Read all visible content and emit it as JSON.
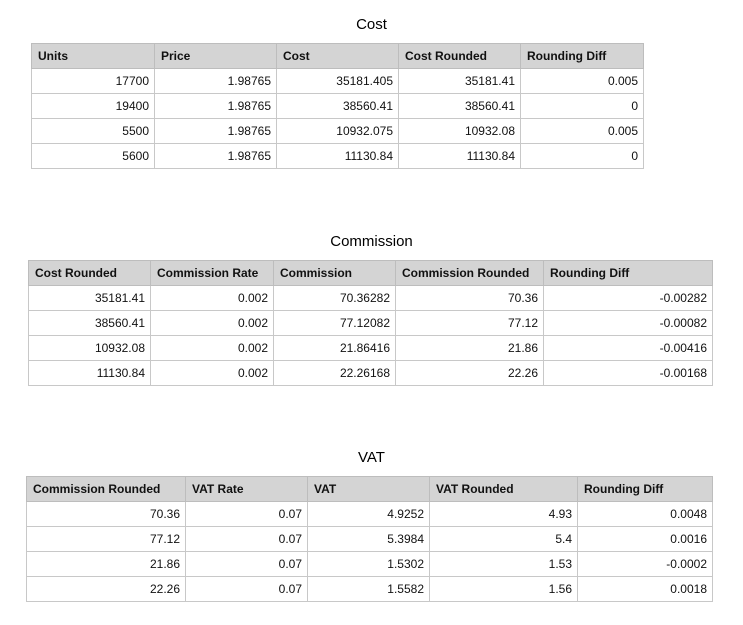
{
  "tables": [
    {
      "title": "Cost",
      "headers": [
        "Units",
        "Price",
        "Cost",
        "Cost Rounded",
        "Rounding Diff"
      ],
      "rows": [
        [
          "17700",
          "1.98765",
          "35181.405",
          "35181.41",
          "0.005"
        ],
        [
          "19400",
          "1.98765",
          "38560.41",
          "38560.41",
          "0"
        ],
        [
          "5500",
          "1.98765",
          "10932.075",
          "10932.08",
          "0.005"
        ],
        [
          "5600",
          "1.98765",
          "11130.84",
          "11130.84",
          "0"
        ]
      ]
    },
    {
      "title": "Commission",
      "headers": [
        "Cost Rounded",
        "Commission Rate",
        "Commission",
        "Commission Rounded",
        "Rounding Diff"
      ],
      "rows": [
        [
          "35181.41",
          "0.002",
          "70.36282",
          "70.36",
          "-0.00282"
        ],
        [
          "38560.41",
          "0.002",
          "77.12082",
          "77.12",
          "-0.00082"
        ],
        [
          "10932.08",
          "0.002",
          "21.86416",
          "21.86",
          "-0.00416"
        ],
        [
          "11130.84",
          "0.002",
          "22.26168",
          "22.26",
          "-0.00168"
        ]
      ]
    },
    {
      "title": "VAT",
      "headers": [
        "Commission Rounded",
        "VAT Rate",
        "VAT",
        "VAT Rounded",
        "Rounding Diff"
      ],
      "rows": [
        [
          "70.36",
          "0.07",
          "4.9252",
          "4.93",
          "0.0048"
        ],
        [
          "77.12",
          "0.07",
          "5.3984",
          "5.4",
          "0.0016"
        ],
        [
          "21.86",
          "0.07",
          "1.5302",
          "1.53",
          "-0.0002"
        ],
        [
          "22.26",
          "0.07",
          "1.5582",
          "1.56",
          "0.0018"
        ]
      ]
    }
  ]
}
